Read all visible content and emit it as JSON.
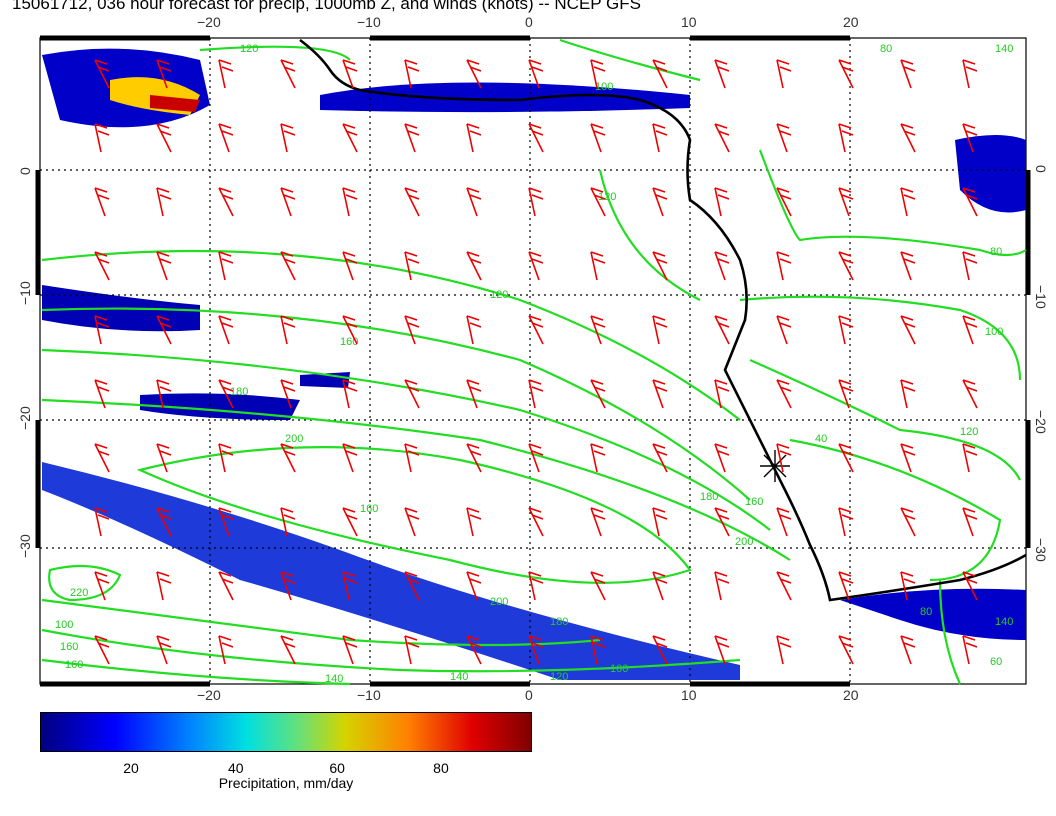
{
  "title": "15061712, 036 hour forecast for precip, 1000mb Z, and winds (knots) -- NCEP GFS",
  "map": {
    "lon_labels": [
      "−20",
      "−10",
      "0",
      "10",
      "20"
    ],
    "lat_labels": [
      "0",
      "−10",
      "−20",
      "−30"
    ],
    "contour_labels": [
      "120",
      "100",
      "80",
      "140",
      "120",
      "100",
      "80",
      "120",
      "160",
      "180",
      "200",
      "220",
      "200",
      "180",
      "160",
      "140",
      "120",
      "100",
      "160",
      "200",
      "180",
      "160",
      "140",
      "120",
      "100",
      "160",
      "140",
      "40",
      "60",
      "80"
    ],
    "colors": {
      "coast": "#000000",
      "contour": "#22dd22",
      "barb": "#ee0000",
      "grid": "#000000"
    },
    "marker_icon": "asterisk-marker-icon"
  },
  "colorbar": {
    "ticks": [
      "20",
      "40",
      "60",
      "80"
    ],
    "label": "Precipitation, mm/day",
    "colors": [
      "#00007f",
      "#0000ff",
      "#0080ff",
      "#00e0e0",
      "#60e080",
      "#d4d400",
      "#ff8000",
      "#e00000",
      "#800000"
    ]
  }
}
